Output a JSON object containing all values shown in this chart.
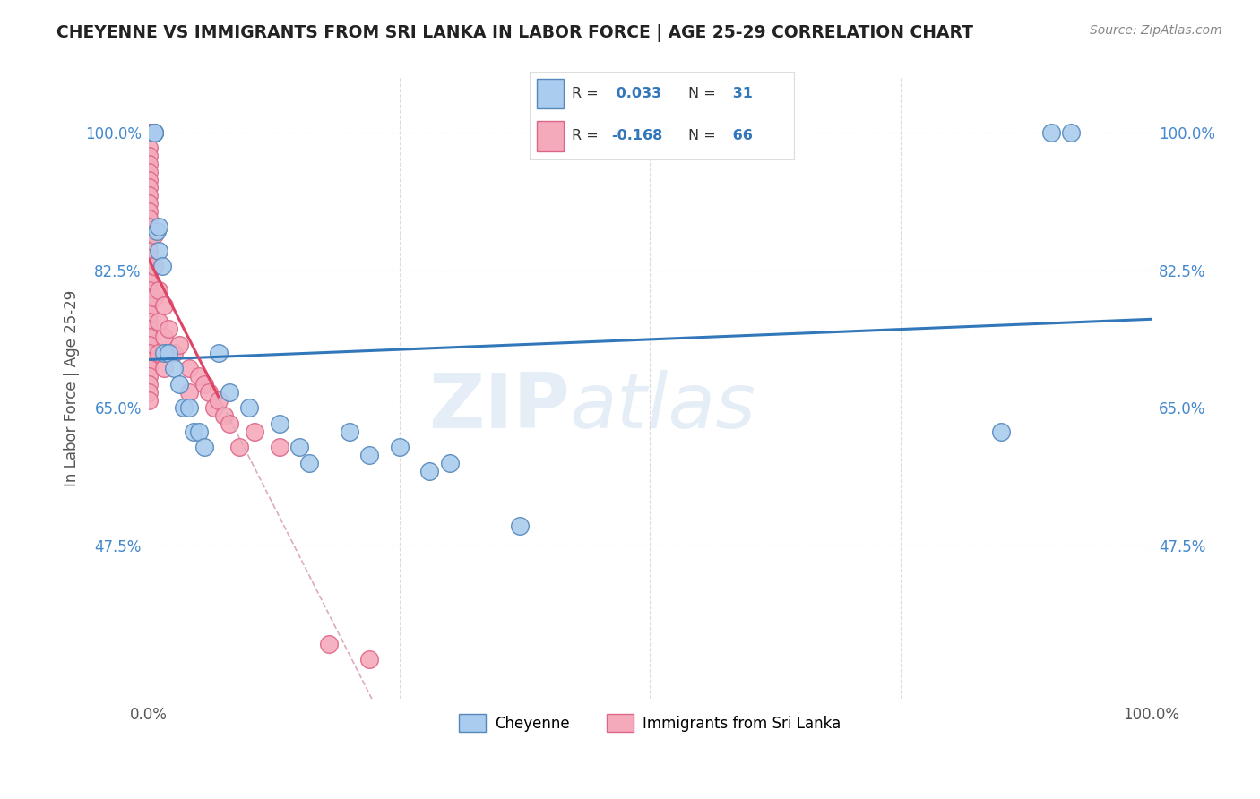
{
  "title": "CHEYENNE VS IMMIGRANTS FROM SRI LANKA IN LABOR FORCE | AGE 25-29 CORRELATION CHART",
  "source_text": "Source: ZipAtlas.com",
  "ylabel": "In Labor Force | Age 25-29",
  "xlim": [
    0.0,
    1.0
  ],
  "ylim": [
    0.28,
    1.07
  ],
  "xtick_labels": [
    "0.0%",
    "100.0%"
  ],
  "xtick_positions": [
    0.0,
    1.0
  ],
  "ytick_labels": [
    "47.5%",
    "65.0%",
    "82.5%",
    "100.0%"
  ],
  "ytick_positions": [
    0.475,
    0.65,
    0.825,
    1.0
  ],
  "background_color": "#ffffff",
  "watermark_text": "ZIPatlas",
  "cheyenne_color": "#aaccee",
  "srilanka_color": "#f5aabb",
  "cheyenne_edge_color": "#5588bb",
  "srilanka_edge_color": "#dd6688",
  "cheyenne_R": 0.033,
  "cheyenne_N": 31,
  "srilanka_R": -0.168,
  "srilanka_N": 66,
  "cheyenne_line_color": "#3377bb",
  "srilanka_line_color": "#dd4466",
  "srilanka_dash_color": "#ddaabb",
  "cheyenne_x": [
    0.005,
    0.005,
    0.005,
    0.008,
    0.01,
    0.01,
    0.013,
    0.015,
    0.02,
    0.025,
    0.03,
    0.035,
    0.04,
    0.045,
    0.05,
    0.055,
    0.07,
    0.08,
    0.1,
    0.13,
    0.15,
    0.16,
    0.2,
    0.22,
    0.25,
    0.28,
    0.3,
    0.37,
    0.85,
    0.9,
    0.92
  ],
  "cheyenne_y": [
    1.0,
    1.0,
    1.0,
    0.875,
    0.88,
    0.85,
    0.83,
    0.72,
    0.72,
    0.7,
    0.68,
    0.65,
    0.65,
    0.62,
    0.62,
    0.6,
    0.72,
    0.67,
    0.65,
    0.63,
    0.6,
    0.58,
    0.62,
    0.59,
    0.6,
    0.57,
    0.58,
    0.5,
    0.62,
    1.0,
    1.0
  ],
  "srilanka_x": [
    0.0,
    0.0,
    0.0,
    0.0,
    0.0,
    0.0,
    0.0,
    0.0,
    0.0,
    0.0,
    0.0,
    0.0,
    0.0,
    0.0,
    0.0,
    0.0,
    0.0,
    0.0,
    0.0,
    0.0,
    0.0,
    0.0,
    0.0,
    0.0,
    0.0,
    0.0,
    0.0,
    0.0,
    0.0,
    0.0,
    0.0,
    0.0,
    0.0,
    0.0,
    0.0,
    0.0,
    0.0,
    0.0,
    0.0,
    0.0,
    0.005,
    0.005,
    0.005,
    0.01,
    0.01,
    0.01,
    0.015,
    0.015,
    0.015,
    0.02,
    0.025,
    0.03,
    0.04,
    0.04,
    0.05,
    0.055,
    0.06,
    0.065,
    0.07,
    0.075,
    0.08,
    0.09,
    0.105,
    0.13,
    0.18,
    0.22
  ],
  "srilanka_y": [
    1.0,
    1.0,
    1.0,
    1.0,
    1.0,
    1.0,
    1.0,
    0.98,
    0.97,
    0.96,
    0.95,
    0.94,
    0.93,
    0.92,
    0.91,
    0.9,
    0.89,
    0.88,
    0.87,
    0.86,
    0.85,
    0.84,
    0.83,
    0.82,
    0.81,
    0.8,
    0.79,
    0.78,
    0.77,
    0.76,
    0.75,
    0.74,
    0.73,
    0.72,
    0.71,
    0.7,
    0.69,
    0.68,
    0.67,
    0.66,
    0.87,
    0.83,
    0.79,
    0.8,
    0.76,
    0.72,
    0.78,
    0.74,
    0.7,
    0.75,
    0.72,
    0.73,
    0.7,
    0.67,
    0.69,
    0.68,
    0.67,
    0.65,
    0.66,
    0.64,
    0.63,
    0.6,
    0.62,
    0.6,
    0.35,
    0.33
  ],
  "legend_border_color": "#dddddd",
  "title_color": "#222222",
  "axis_color": "#888888",
  "grid_color": "#cccccc",
  "tick_color": "#4488cc"
}
